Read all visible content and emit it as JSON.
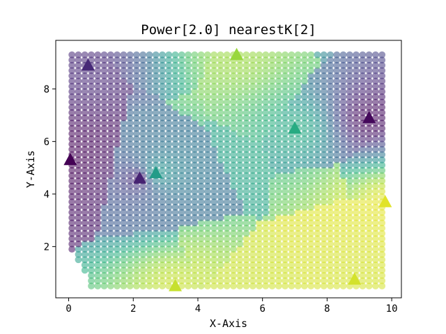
{
  "chart_data": {
    "type": "scatter",
    "title": "Power[2.0] nearestK[2]",
    "xlabel": "X-Axis",
    "ylabel": "Y-Axis",
    "xlim": [
      -0.4,
      10.3
    ],
    "ylim": [
      0.05,
      9.85
    ],
    "xticks": [
      0,
      2,
      4,
      6,
      8,
      10
    ],
    "yticks": [
      2,
      4,
      6,
      8
    ],
    "grid": false,
    "colormap": "viridis",
    "value_range": [
      0,
      1
    ],
    "sample_points": [
      {
        "x": 0.6,
        "y": 8.9,
        "value": 0.12
      },
      {
        "x": 5.2,
        "y": 9.3,
        "value": 0.85
      },
      {
        "x": 9.3,
        "y": 6.9,
        "value": 0.02
      },
      {
        "x": 7.0,
        "y": 6.5,
        "value": 0.62
      },
      {
        "x": 0.05,
        "y": 5.3,
        "value": 0.0
      },
      {
        "x": 2.7,
        "y": 4.8,
        "value": 0.55
      },
      {
        "x": 2.2,
        "y": 4.6,
        "value": 0.1
      },
      {
        "x": 9.8,
        "y": 3.7,
        "value": 0.96
      },
      {
        "x": 3.3,
        "y": 0.5,
        "value": 0.92
      },
      {
        "x": 8.85,
        "y": 0.75,
        "value": 0.94
      }
    ],
    "interpolated_grid": {
      "x_start": 0.1,
      "x_end": 9.8,
      "x_step": 0.2,
      "y_start": 0.5,
      "y_end": 9.4,
      "y_step": 0.2,
      "method": "inverse-distance power 2, 2 nearest neighbours",
      "clip": "mask below the line from (0.1, 1.8) to (0.7, 0.5)"
    }
  }
}
